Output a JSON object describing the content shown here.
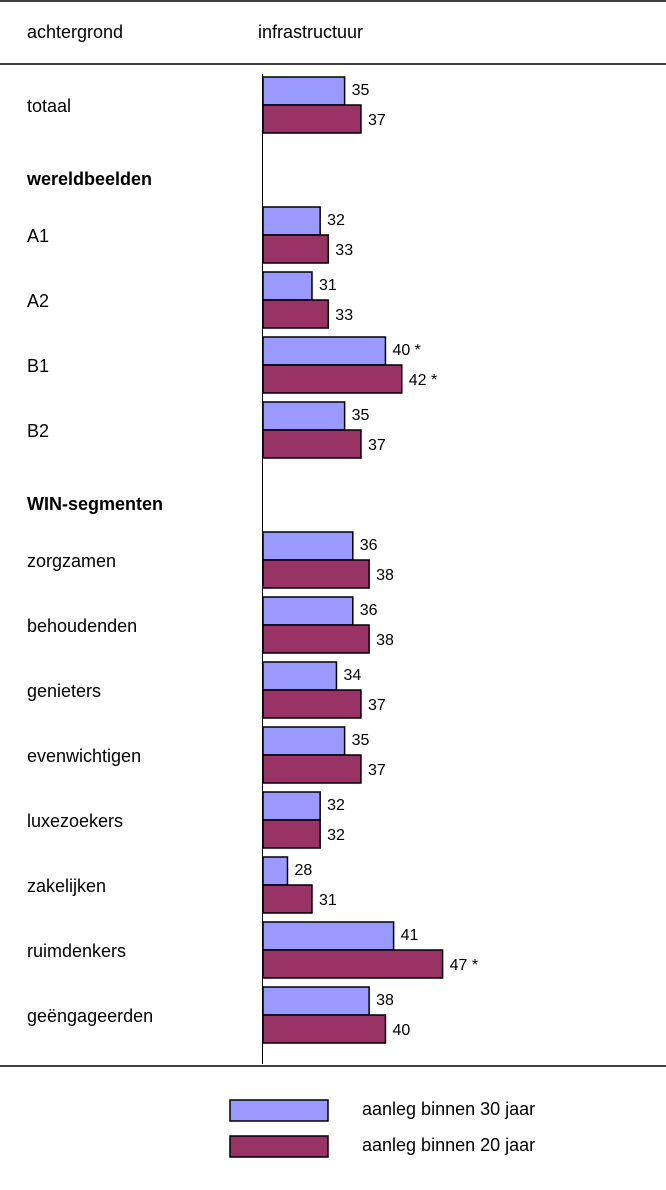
{
  "chart_data": {
    "type": "bar",
    "orientation": "horizontal",
    "column_headers": [
      "achtergrond",
      "infrastructuur"
    ],
    "categories": [
      "totaal",
      "wereldbeelden",
      "A1",
      "A2",
      "B1",
      "B2",
      "WIN-segmenten",
      "zorgzamen",
      "behoudenden",
      "genieters",
      "evenwichtigen",
      "luxezoekers",
      "zakelijken",
      "ruimdenkers",
      "geëngageerden"
    ],
    "series": [
      {
        "name": "aanleg binnen 30 jaar",
        "color": "#9999ff",
        "values": [
          35,
          null,
          32,
          31,
          40,
          35,
          null,
          36,
          36,
          34,
          35,
          32,
          28,
          41,
          38
        ],
        "value_labels": [
          "35",
          null,
          "32",
          "31",
          "40 *",
          "35",
          null,
          "36",
          "36",
          "34",
          "35",
          "32",
          "28",
          "41",
          "38"
        ]
      },
      {
        "name": "aanleg binnen 20 jaar",
        "color": "#993366",
        "values": [
          37,
          null,
          33,
          33,
          42,
          37,
          null,
          38,
          38,
          37,
          37,
          32,
          31,
          47,
          40
        ],
        "value_labels": [
          "37",
          null,
          "33",
          "33",
          "42 *",
          "37",
          null,
          "38",
          "38",
          "37",
          "37",
          "32",
          "31",
          "47 *",
          "40"
        ]
      }
    ],
    "xlim": [
      25,
      74
    ]
  }
}
